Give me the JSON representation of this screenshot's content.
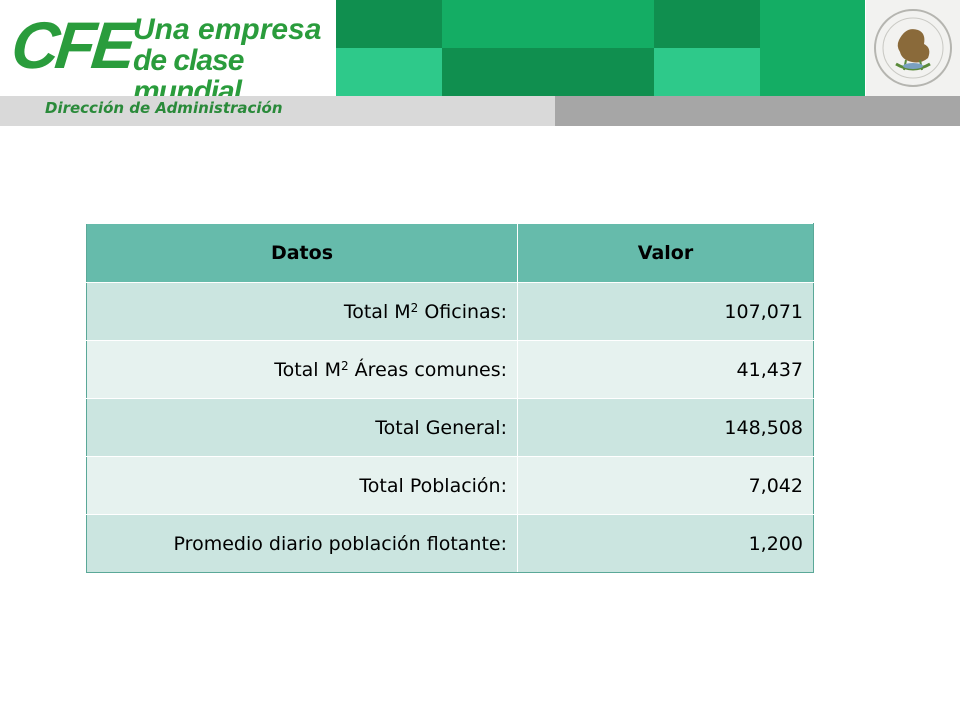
{
  "header": {
    "logo_text": "CFE",
    "tagline_line1": "Una empresa",
    "tagline_line2": "de clase mundial",
    "department": "Dirección de Administración",
    "seal_label": "ESTADOS UNIDOS MEXICANOS",
    "colors": {
      "brand_green": "#2a9c3c",
      "tile_dark": "#108f4f",
      "tile_mid": "#14ad64",
      "tile_light": "#2ec98a"
    }
  },
  "table": {
    "headers": [
      "Datos",
      "Valor"
    ],
    "rows": [
      {
        "label": "Total M",
        "sup": "2",
        "label_rest": " Oficinas:",
        "value": "107,071"
      },
      {
        "label": "Total M",
        "sup": "2",
        "label_rest": " Áreas comunes:",
        "value": "41,437"
      },
      {
        "label": "Total General:",
        "sup": "",
        "label_rest": "",
        "value": "148,508"
      },
      {
        "label": "Total Población:",
        "sup": "",
        "label_rest": "",
        "value": "7,042"
      },
      {
        "label": "Promedio diario población flotante:",
        "sup": "",
        "label_rest": "",
        "value": "1,200"
      }
    ]
  }
}
